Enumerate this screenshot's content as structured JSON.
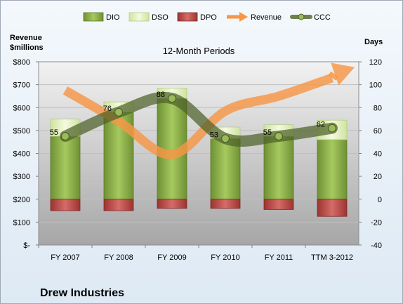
{
  "chart_data": {
    "type": "bar",
    "title": "12-Month Periods",
    "company": "Drew Industries",
    "y_left_label": [
      "Revenue",
      "$millions"
    ],
    "y_right_label": "Days",
    "categories": [
      "FY 2007",
      "FY 2008",
      "FY 2009",
      "FY 2010",
      "FY 2011",
      "TTM 3-2012"
    ],
    "y_left_ticks": [
      "$-",
      "$100",
      "$200",
      "$300",
      "$400",
      "$500",
      "$600",
      "$700",
      "$800"
    ],
    "y_right_ticks": [
      "-40",
      "-20",
      "0",
      "20",
      "40",
      "60",
      "80",
      "100",
      "120"
    ],
    "ylim_left": [
      0,
      800
    ],
    "ylim_right": [
      -40,
      120
    ],
    "legend_position": "top",
    "series": [
      {
        "name": "DIO",
        "type": "bar",
        "axis": "right",
        "values": [
          55,
          76,
          88,
          53,
          55,
          52
        ],
        "color": "#8db148"
      },
      {
        "name": "DSO",
        "type": "bar",
        "axis": "right",
        "values": [
          15,
          9,
          9,
          10,
          10,
          17
        ],
        "color": "#e8f3c8"
      },
      {
        "name": "DPO",
        "type": "bar",
        "axis": "right",
        "values": [
          -10,
          -10,
          -8,
          -8,
          -9,
          -15
        ],
        "color": "#c0504d"
      },
      {
        "name": "Revenue",
        "type": "line",
        "axis": "left",
        "values": [
          675,
          540,
          395,
          585,
          650,
          730
        ],
        "color": "#f79646"
      },
      {
        "name": "CCC",
        "type": "line",
        "axis": "right",
        "values": [
          55,
          76,
          88,
          53,
          55,
          62
        ],
        "color": "#4e6128"
      }
    ],
    "data_labels": [
      "55",
      "76",
      "88",
      "53",
      "55",
      "62"
    ]
  }
}
